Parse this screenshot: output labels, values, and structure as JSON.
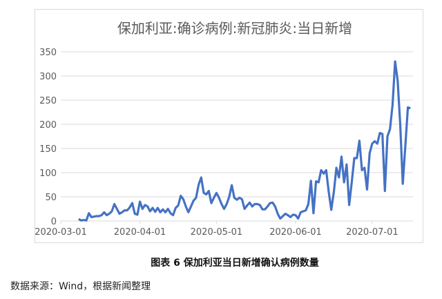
{
  "chart_data": {
    "type": "line",
    "title": "保加利亚:确诊病例:新冠肺炎:当日新增",
    "xlabel": "",
    "ylabel": "",
    "ylim": [
      0,
      350
    ],
    "yticks": [
      0,
      50,
      100,
      150,
      200,
      250,
      300,
      350
    ],
    "xticks": [
      "2020-03-01",
      "2020-04-01",
      "2020-05-01",
      "2020-06-01",
      "2020-07-01"
    ],
    "xlim": [
      "2020-03-01",
      "2020-07-17"
    ],
    "grid": "horizontal",
    "line_color": "#4472c4",
    "months": [
      {
        "month": "2020-03",
        "start_day": 8,
        "values": [
          4,
          1,
          2,
          1,
          16,
          8,
          9,
          10,
          10,
          12,
          18,
          12,
          15,
          20,
          35,
          25,
          15,
          18,
          22,
          22,
          28,
          37,
          15,
          13
        ]
      },
      {
        "month": "2020-04",
        "start_day": 1,
        "values": [
          40,
          25,
          33,
          30,
          20,
          27,
          19,
          27,
          18,
          24,
          18,
          25,
          16,
          12,
          27,
          32,
          52,
          45,
          30,
          18,
          30,
          42,
          48,
          75,
          90,
          58,
          55,
          62,
          37,
          48
        ]
      },
      {
        "month": "2020-05",
        "start_day": 1,
        "values": [
          58,
          48,
          35,
          25,
          35,
          50,
          74,
          48,
          44,
          48,
          45,
          25,
          32,
          38,
          30,
          35,
          35,
          33,
          24,
          24,
          30,
          37,
          38,
          30,
          15,
          5,
          10,
          15,
          12,
          8,
          13
        ]
      },
      {
        "month": "2020-06",
        "start_day": 1,
        "values": [
          12,
          5,
          18,
          20,
          22,
          35,
          83,
          16,
          82,
          80,
          105,
          98,
          105,
          60,
          23,
          60,
          110,
          90,
          133,
          80,
          117,
          33,
          80,
          130,
          130,
          166,
          105,
          110,
          65,
          140
        ]
      },
      {
        "month": "2020-07",
        "start_day": 1,
        "values": [
          160,
          165,
          160,
          182,
          180,
          62,
          175,
          190,
          240,
          330,
          290,
          200,
          77,
          155,
          235,
          233
        ]
      }
    ]
  },
  "caption": "图表 6 保加利亚当日新增确认病例数量",
  "source": "数据来源：Wind，根据新闻整理"
}
